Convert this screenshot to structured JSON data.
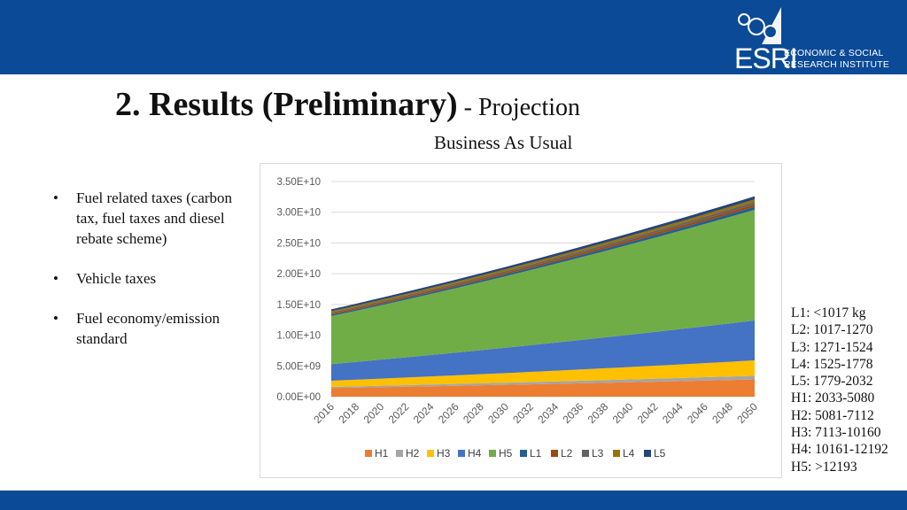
{
  "header": {
    "logo_esri": "ESRI",
    "logo_line1": "ECONOMIC & SOCIAL",
    "logo_line2": "RESEARCH INSTITUTE"
  },
  "slide": {
    "title": "2. Results (Preliminary)",
    "title_suffix": " - Projection",
    "scenario": "Business As Usual"
  },
  "bullets": [
    "Fuel related taxes (carbon tax, fuel taxes and diesel rebate scheme)",
    "Vehicle taxes",
    "Fuel economy/emission standard"
  ],
  "weight_classes": [
    "L1: <1017 kg",
    "L2: 1017-1270",
    "L3: 1271-1524",
    "L4: 1525-1778",
    "L5: 1779-2032",
    "H1: 2033-5080",
    "H2: 5081-7112",
    "H3: 7113-10160",
    "H4: 10161-12192",
    "H5:  >12193"
  ],
  "chart_data": {
    "type": "area",
    "stacked": true,
    "x": [
      2016,
      2017,
      2018,
      2019,
      2020,
      2021,
      2022,
      2023,
      2024,
      2025,
      2026,
      2027,
      2028,
      2029,
      2030,
      2031,
      2032,
      2033,
      2034,
      2035,
      2036,
      2037,
      2038,
      2039,
      2040,
      2041,
      2042,
      2043,
      2044,
      2045,
      2046,
      2047,
      2048,
      2049,
      2050
    ],
    "x_tick_labels": [
      "2016",
      "2018",
      "2020",
      "2022",
      "2024",
      "2026",
      "2028",
      "2030",
      "2032",
      "2034",
      "2036",
      "2038",
      "2040",
      "2042",
      "2044",
      "2046",
      "2048",
      "2050"
    ],
    "y_tick_labels": [
      "0.00E+00",
      "5.00E+09",
      "1.00E+10",
      "1.50E+10",
      "2.00E+10",
      "2.50E+10",
      "3.00E+10",
      "3.50E+10"
    ],
    "ylim": [
      0,
      35000000000
    ],
    "grid": true,
    "legend_position": "bottom",
    "series": [
      {
        "name": "H1",
        "color": "#ed7d31",
        "start": 1400000000,
        "end": 2800000000
      },
      {
        "name": "H2",
        "color": "#a5a5a5",
        "start": 200000000,
        "end": 600000000
      },
      {
        "name": "H3",
        "color": "#ffc000",
        "start": 1000000000,
        "end": 2500000000
      },
      {
        "name": "H4",
        "color": "#4472c4",
        "start": 2700000000,
        "end": 6500000000
      },
      {
        "name": "H5",
        "color": "#70ad47",
        "start": 7800000000,
        "end": 18000000000
      },
      {
        "name": "L1",
        "color": "#255e91",
        "start": 200000000,
        "end": 500000000
      },
      {
        "name": "L2",
        "color": "#9e480e",
        "start": 200000000,
        "end": 400000000
      },
      {
        "name": "L3",
        "color": "#636363",
        "start": 200000000,
        "end": 400000000
      },
      {
        "name": "L4",
        "color": "#997300",
        "start": 200000000,
        "end": 400000000
      },
      {
        "name": "L5",
        "color": "#264478",
        "start": 300000000,
        "end": 500000000
      }
    ]
  }
}
